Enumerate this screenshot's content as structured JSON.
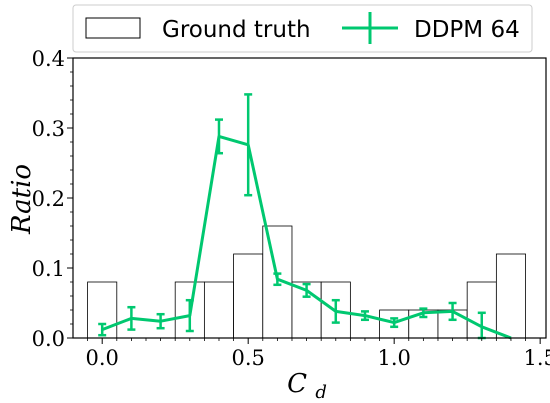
{
  "chart_data": {
    "type": "bar",
    "xlabel": "C_d",
    "ylabel": "Ratio",
    "xlim": [
      -0.1,
      1.52
    ],
    "ylim": [
      0,
      0.4
    ],
    "x_ticks": [
      0.0,
      0.5,
      1.0,
      1.5
    ],
    "x_tick_labels": [
      "0.0",
      "0.5",
      "1.0",
      "1.5"
    ],
    "y_ticks": [
      0.0,
      0.1,
      0.2,
      0.3,
      0.4
    ],
    "y_tick_labels": [
      "0.0",
      "0.1",
      "0.2",
      "0.3",
      "0.4"
    ],
    "legend_position": "top",
    "series": [
      {
        "name": "Ground truth",
        "type": "histogram",
        "bin_width": 0.1,
        "bin_starts": [
          -0.05,
          0.05,
          0.15,
          0.25,
          0.35,
          0.45,
          0.55,
          0.65,
          0.75,
          0.85,
          0.95,
          1.05,
          1.15,
          1.25,
          1.35
        ],
        "values": [
          0.08,
          0.0,
          0.0,
          0.08,
          0.08,
          0.12,
          0.16,
          0.08,
          0.08,
          0.0,
          0.04,
          0.04,
          0.04,
          0.08,
          0.12
        ],
        "color": "#ffffff",
        "edge_color": "#000000"
      },
      {
        "name": "DDPM 64",
        "type": "line_errorbar",
        "x": [
          0.0,
          0.1,
          0.2,
          0.3,
          0.4,
          0.5,
          0.6,
          0.7,
          0.8,
          0.9,
          1.0,
          1.1,
          1.2,
          1.3,
          1.4
        ],
        "y": [
          0.012,
          0.028,
          0.024,
          0.032,
          0.288,
          0.276,
          0.084,
          0.068,
          0.038,
          0.032,
          0.022,
          0.036,
          0.038,
          0.016,
          0.0
        ],
        "err": [
          0.008,
          0.016,
          0.01,
          0.022,
          0.024,
          0.072,
          0.008,
          0.009,
          0.016,
          0.006,
          0.006,
          0.006,
          0.012,
          0.02,
          0.0
        ],
        "color": "#00c870"
      }
    ]
  }
}
